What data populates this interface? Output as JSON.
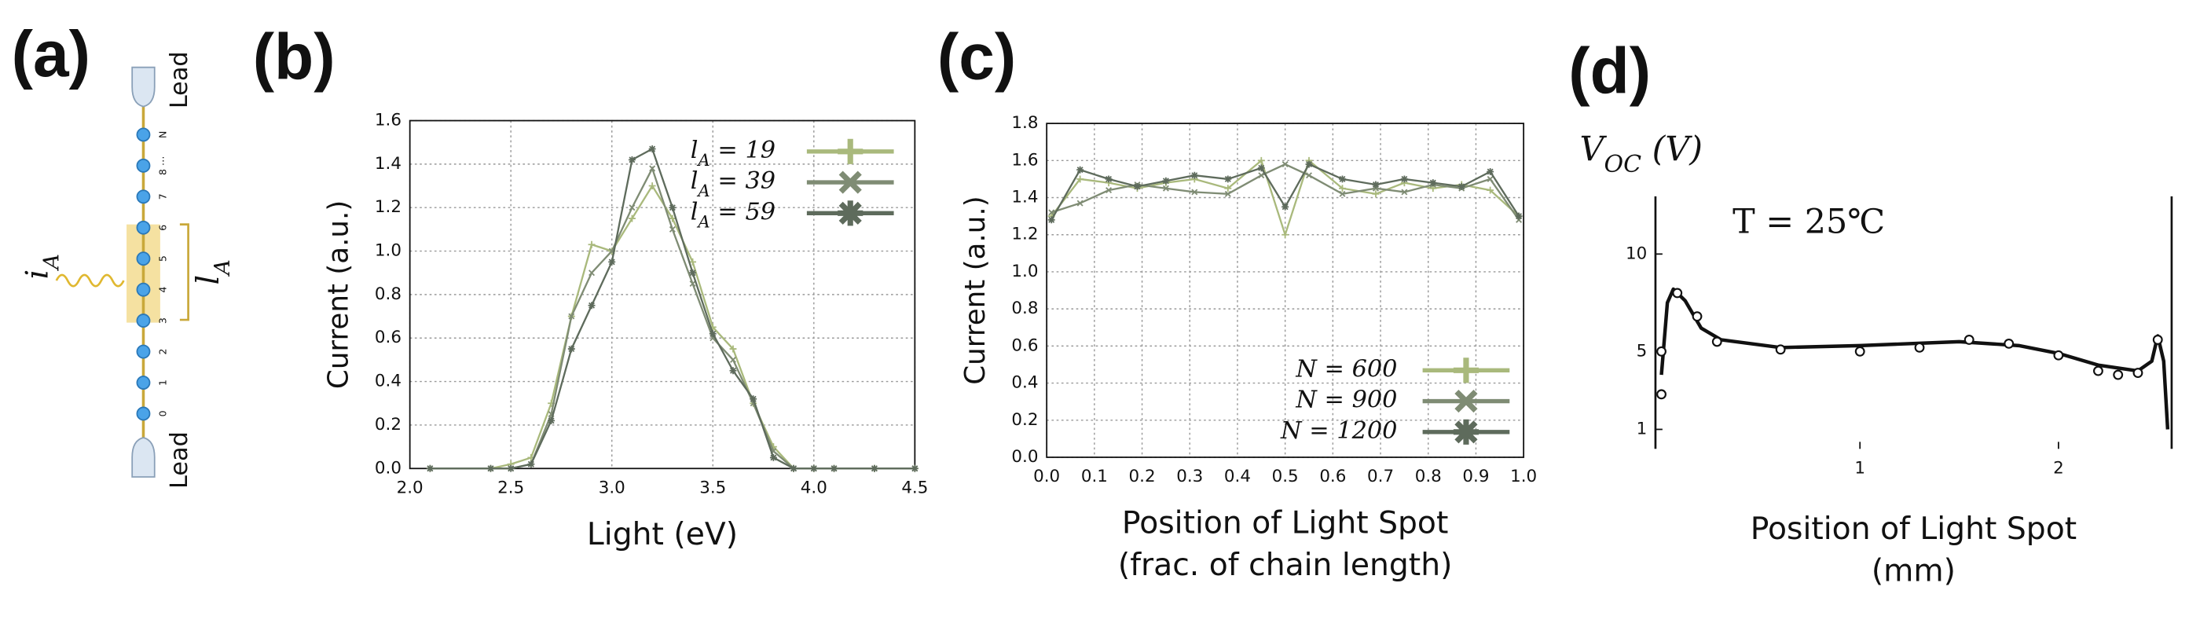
{
  "diagram": {
    "panel_label": "(a)",
    "top_lead": "Lead",
    "bottom_lead": "Lead",
    "current_label": "i_A",
    "length_label": "l_A",
    "node_labels": [
      "N",
      "8 ⋯",
      "7",
      "6",
      "5",
      "4",
      "3",
      "2",
      "1",
      "0"
    ]
  },
  "chart_data": [
    {
      "type": "line",
      "panel_label": "(b)",
      "xlabel": [
        "Light (eV)"
      ],
      "ylabel": "Current (a.u.)",
      "x": [
        2.1,
        2.4,
        2.5,
        2.6,
        2.7,
        2.8,
        2.9,
        3.0,
        3.1,
        3.2,
        3.3,
        3.4,
        3.5,
        3.6,
        3.7,
        3.8,
        3.9,
        4.0,
        4.1,
        4.3,
        4.5
      ],
      "series": [
        {
          "name": "l_A = 19",
          "color": "#a9b97c",
          "marker": "plus",
          "values": [
            0,
            0,
            0.02,
            0.05,
            0.3,
            0.7,
            1.03,
            1.0,
            1.15,
            1.3,
            1.15,
            0.95,
            0.65,
            0.55,
            0.3,
            0.1,
            0,
            0,
            0,
            0,
            0
          ]
        },
        {
          "name": "l_A = 39",
          "color": "#7f8c74",
          "marker": "x",
          "values": [
            0,
            0,
            0,
            0.02,
            0.25,
            0.7,
            0.9,
            1.0,
            1.2,
            1.38,
            1.1,
            0.85,
            0.6,
            0.5,
            0.3,
            0.08,
            0,
            0,
            0,
            0,
            0
          ]
        },
        {
          "name": "l_A = 59",
          "color": "#5e6b5c",
          "marker": "star",
          "values": [
            0,
            0,
            0,
            0.02,
            0.22,
            0.55,
            0.75,
            0.95,
            1.42,
            1.47,
            1.2,
            0.9,
            0.62,
            0.45,
            0.32,
            0.05,
            0,
            0,
            0,
            0,
            0
          ]
        }
      ],
      "xlim": [
        2,
        4.5
      ],
      "ylim": [
        0,
        1.6
      ],
      "xticks": [
        {
          "value": 2,
          "label": "2.0"
        },
        2.5,
        {
          "value": 3,
          "label": "3.0"
        },
        3.5,
        {
          "value": 4,
          "label": "4.0"
        },
        4.5
      ],
      "yticks": [
        {
          "value": 0,
          "label": "0.0"
        },
        0.2,
        0.4,
        0.6,
        0.8,
        {
          "value": 1,
          "label": "1.0"
        },
        1.2,
        1.4,
        1.6
      ],
      "grid": true,
      "legend": "top-right"
    },
    {
      "type": "line",
      "panel_label": "(c)",
      "xlabel": [
        "Position of Light Spot",
        "(frac. of chain length)"
      ],
      "ylabel": "Current (a.u.)",
      "x": [
        0.01,
        0.07,
        0.13,
        0.19,
        0.25,
        0.31,
        0.38,
        0.45,
        0.5,
        0.55,
        0.62,
        0.69,
        0.75,
        0.81,
        0.87,
        0.93,
        0.99
      ],
      "series": [
        {
          "name": "N = 600",
          "color": "#a9b97c",
          "marker": "plus",
          "values": [
            1.3,
            1.5,
            1.48,
            1.45,
            1.48,
            1.5,
            1.45,
            1.6,
            1.2,
            1.6,
            1.45,
            1.42,
            1.48,
            1.45,
            1.47,
            1.44,
            1.3
          ]
        },
        {
          "name": "N = 900",
          "color": "#7f8c74",
          "marker": "x",
          "values": [
            1.32,
            1.37,
            1.44,
            1.47,
            1.45,
            1.43,
            1.42,
            1.52,
            1.58,
            1.52,
            1.42,
            1.45,
            1.43,
            1.47,
            1.45,
            1.5,
            1.28
          ]
        },
        {
          "name": "N = 1200",
          "color": "#5e6b5c",
          "marker": "star",
          "values": [
            1.28,
            1.55,
            1.5,
            1.46,
            1.49,
            1.52,
            1.5,
            1.56,
            1.35,
            1.58,
            1.5,
            1.47,
            1.5,
            1.48,
            1.46,
            1.54,
            1.3
          ]
        }
      ],
      "xlim": [
        0,
        1
      ],
      "ylim": [
        0,
        1.8
      ],
      "xticks": [
        {
          "value": 0,
          "label": "0.0"
        },
        0.1,
        0.2,
        0.3,
        0.4,
        0.5,
        0.6,
        0.7,
        0.8,
        0.9,
        {
          "value": 1,
          "label": "1.0"
        }
      ],
      "yticks": [
        {
          "value": 0,
          "label": "0.0"
        },
        0.2,
        0.4,
        0.6,
        0.8,
        {
          "value": 1,
          "label": "1.0"
        },
        1.2,
        1.4,
        1.6,
        1.8
      ],
      "grid": true,
      "legend": "bottom-right"
    },
    {
      "type": "scatter",
      "panel_label": "(d)",
      "xlabel": [
        "Position of Light Spot",
        "(mm)"
      ],
      "ylabel": "V_OC (V)",
      "annotation": "T = 25℃",
      "points": {
        "x": [
          0.0,
          0.0,
          0.08,
          0.18,
          0.28,
          0.6,
          1.0,
          1.3,
          1.55,
          1.75,
          2.0,
          2.2,
          2.3,
          2.4,
          2.5
        ],
        "y": [
          5,
          2.8,
          8,
          6.8,
          5.5,
          5.1,
          5.0,
          5.2,
          5.6,
          5.4,
          4.8,
          4.0,
          3.8,
          3.9,
          5.6
        ]
      },
      "curve": {
        "x": [
          0.0,
          0.03,
          0.06,
          0.12,
          0.2,
          0.3,
          0.6,
          1.0,
          1.5,
          1.8,
          2.0,
          2.2,
          2.4,
          2.47,
          2.5,
          2.53,
          2.55
        ],
        "y": [
          3.8,
          7.5,
          8.2,
          7.6,
          6.2,
          5.6,
          5.2,
          5.3,
          5.5,
          5.3,
          4.9,
          4.3,
          4.0,
          4.5,
          5.8,
          4.5,
          1.0
        ]
      },
      "color": "#111111",
      "xlim": [
        -0.03,
        2.57
      ],
      "ylim": [
        0,
        12.6
      ],
      "xticks": [
        1,
        2
      ],
      "yticks": [
        1,
        5,
        10
      ],
      "grid": false
    }
  ]
}
